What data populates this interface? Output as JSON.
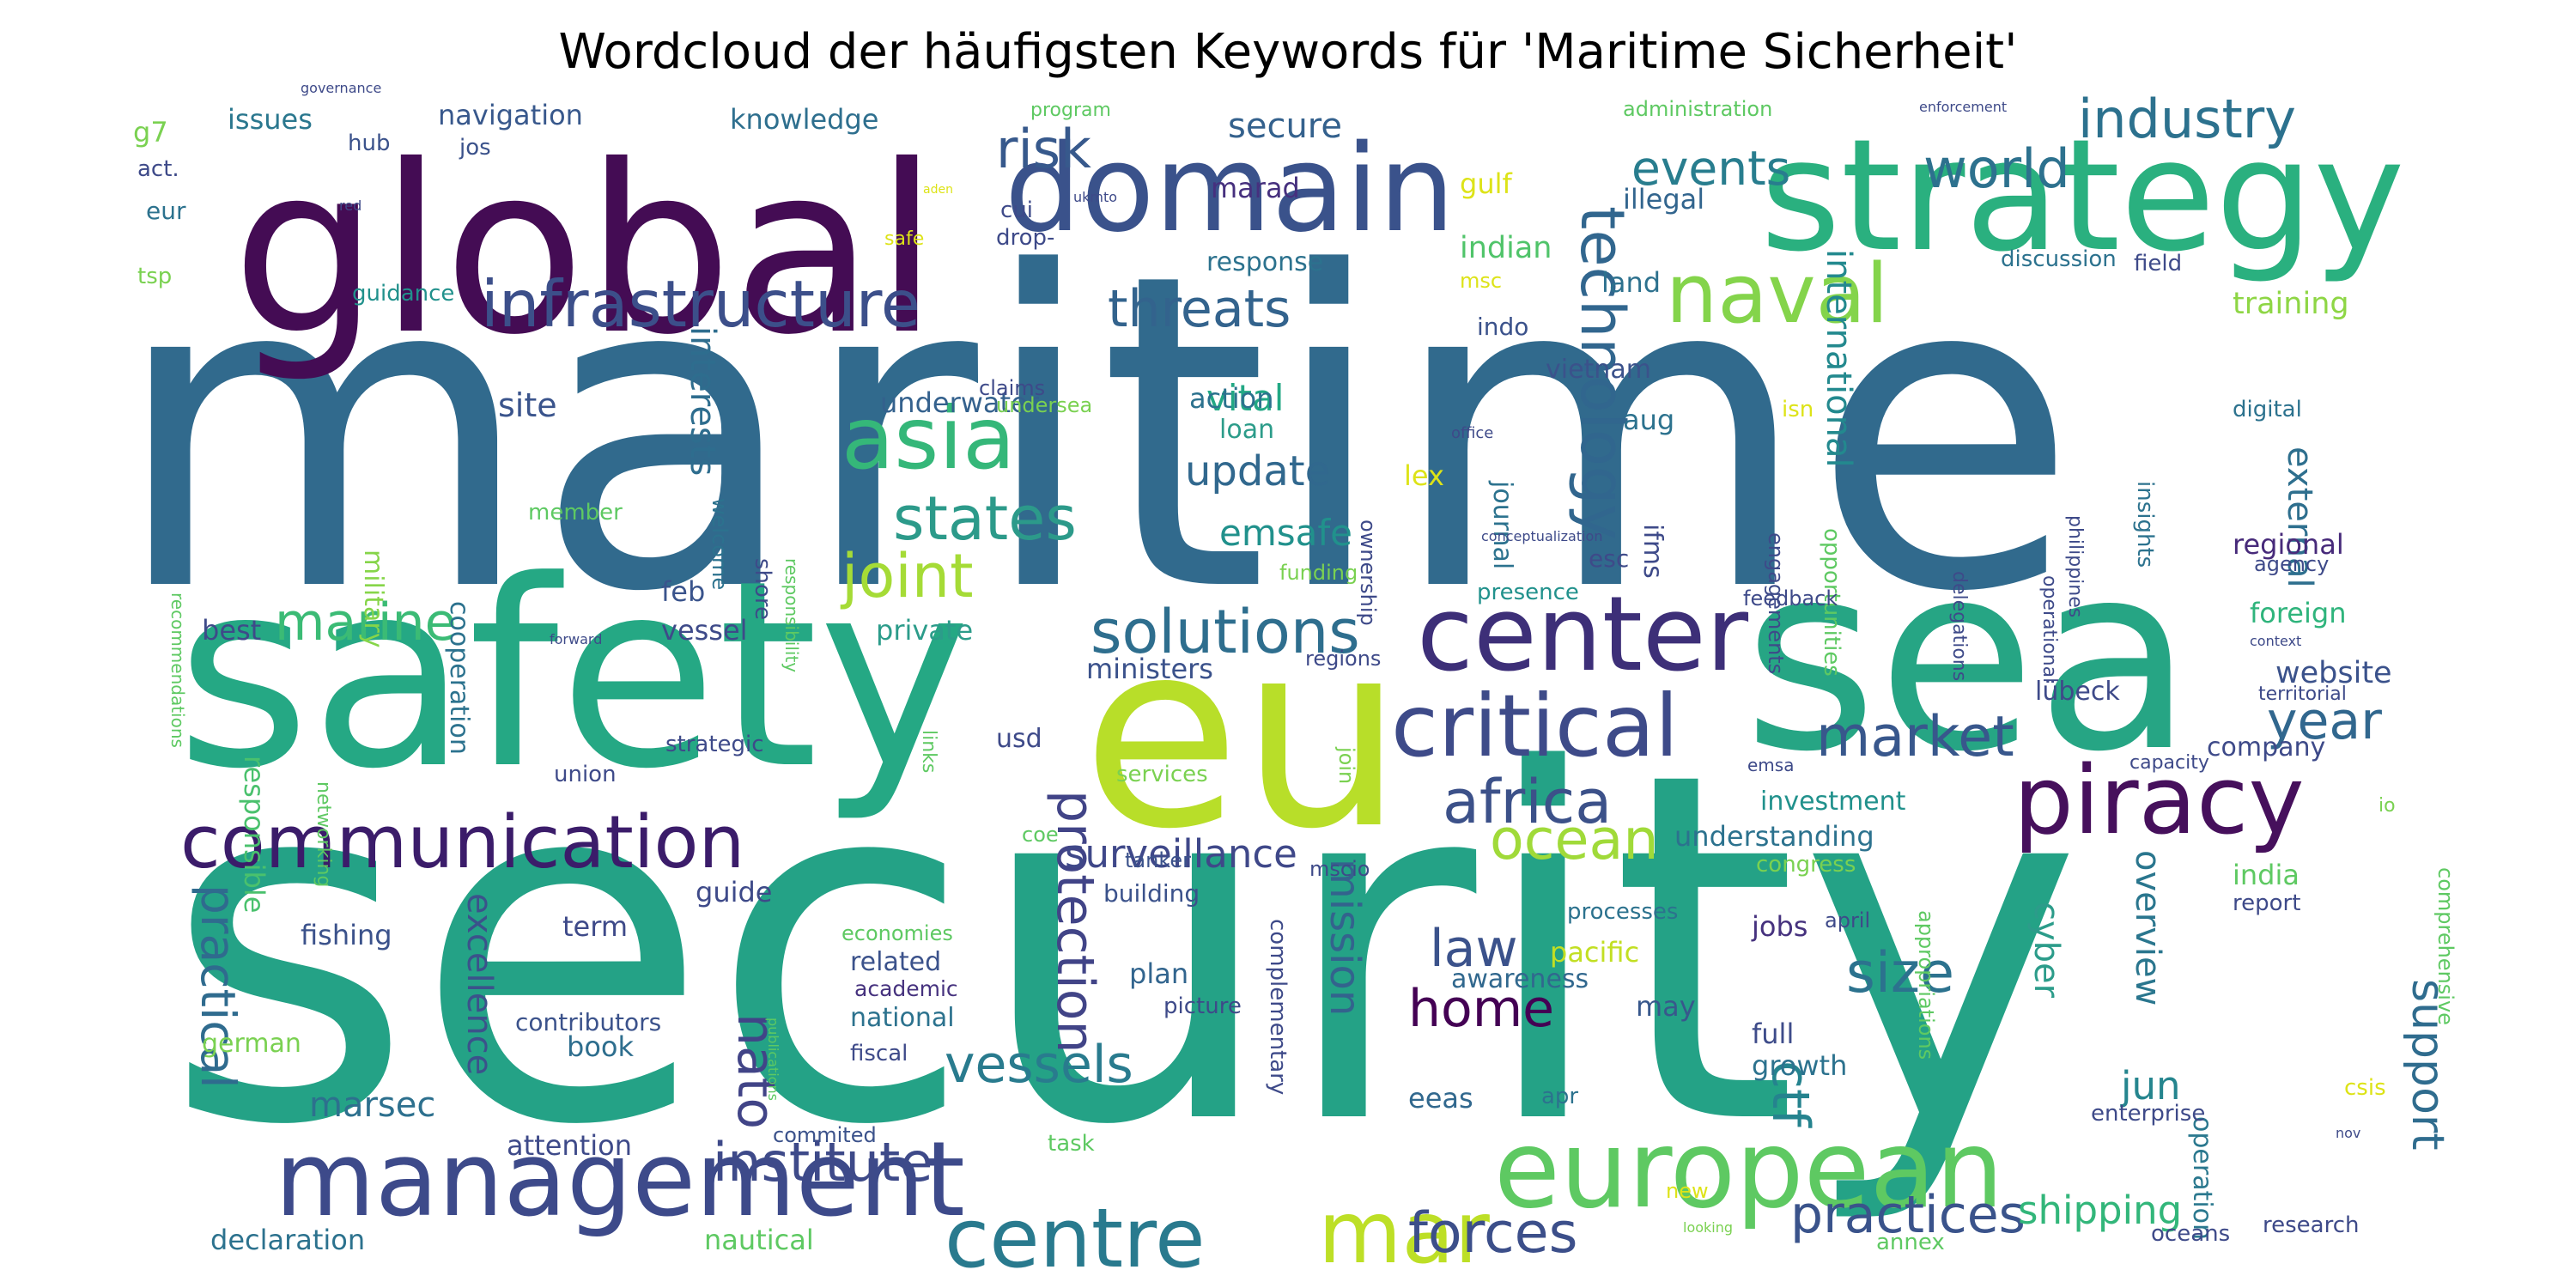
{
  "title": "Wordcloud der häufigsten Keywords für 'Maritime Sicherheit'",
  "palette": "viridis",
  "words": [
    {
      "text": "security",
      "c": "#24a286"
    },
    {
      "text": "maritime",
      "c": "#316a8d"
    },
    {
      "text": "global",
      "c": "#440c54"
    },
    {
      "text": "safety",
      "c": "#25a884"
    },
    {
      "text": "sea",
      "c": "#26a584"
    },
    {
      "text": "strategy",
      "c": "#2ab07f"
    },
    {
      "text": "eu",
      "c": "#b8de29"
    },
    {
      "text": "domain",
      "c": "#3a528b"
    },
    {
      "text": "management",
      "c": "#3d4a8a"
    },
    {
      "text": "european",
      "c": "#5ec962"
    },
    {
      "text": "piracy",
      "c": "#46105c"
    },
    {
      "text": "center",
      "c": "#3d2f78"
    },
    {
      "text": "communication",
      "c": "#3b1c6a"
    },
    {
      "text": "critical",
      "c": "#3e4b89"
    },
    {
      "text": "asia",
      "c": "#35b779"
    },
    {
      "text": "centre",
      "c": "#297a8e"
    },
    {
      "text": "mar",
      "c": "#bddf26"
    },
    {
      "text": "infrastructure",
      "c": "#3c4f8a"
    },
    {
      "text": "naval",
      "c": "#84d44b"
    },
    {
      "text": "technology",
      "c": "#31668e"
    },
    {
      "text": "states",
      "c": "#2c9a8a"
    },
    {
      "text": "africa",
      "c": "#3c5189"
    },
    {
      "text": "institute",
      "c": "#3e4a89"
    },
    {
      "text": "protection",
      "c": "#414487"
    },
    {
      "text": "solutions",
      "c": "#2e6e8e"
    },
    {
      "text": "threats",
      "c": "#33638d"
    },
    {
      "text": "industry",
      "c": "#2c718e"
    },
    {
      "text": "world",
      "c": "#2d718e"
    },
    {
      "text": "risk",
      "c": "#37598c"
    },
    {
      "text": "joint",
      "c": "#a5db36"
    },
    {
      "text": "marine",
      "c": "#3bbb75"
    },
    {
      "text": "events",
      "c": "#287d8e"
    },
    {
      "text": "practical",
      "c": "#2f6b8e"
    },
    {
      "text": "vessels",
      "c": "#297b8e"
    },
    {
      "text": "forces",
      "c": "#3c4f8a"
    },
    {
      "text": "practices",
      "c": "#3a538b"
    },
    {
      "text": "market",
      "c": "#38578c"
    },
    {
      "text": "ocean",
      "c": "#a0da39"
    },
    {
      "text": "support",
      "c": "#2f6c8e"
    },
    {
      "text": "nato",
      "c": "#414487"
    },
    {
      "text": "size",
      "c": "#2c728e"
    },
    {
      "text": "law",
      "c": "#3b528b"
    },
    {
      "text": "surveillance",
      "c": "#3f4889"
    },
    {
      "text": "home",
      "c": "#440154"
    },
    {
      "text": "ctf",
      "c": "#25838e"
    },
    {
      "text": "year",
      "c": "#31678e"
    },
    {
      "text": "shipping",
      "c": "#32b67a"
    },
    {
      "text": "mission",
      "c": "#33638d"
    },
    {
      "text": "update",
      "c": "#31688e"
    },
    {
      "text": "emsafe",
      "c": "#21918c"
    },
    {
      "text": "vital",
      "c": "#22a884"
    },
    {
      "text": "international",
      "c": "#23898e"
    },
    {
      "text": "external",
      "c": "#2e6f8e"
    },
    {
      "text": "cyber",
      "c": "#2c9c8a"
    },
    {
      "text": "overview",
      "c": "#2a768e"
    },
    {
      "text": "interests",
      "c": "#2e6d8e"
    },
    {
      "text": "excellence",
      "c": "#3b528b"
    },
    {
      "text": "marsec",
      "c": "#2d708e"
    },
    {
      "text": "jun",
      "c": "#25858e"
    },
    {
      "text": "secure",
      "c": "#34618d"
    },
    {
      "text": "operation",
      "c": "#2a788e"
    },
    {
      "text": "training",
      "c": "#8ed645"
    },
    {
      "text": "regional",
      "c": "#472a7a"
    },
    {
      "text": "website",
      "c": "#3b528b"
    },
    {
      "text": "foreign",
      "c": "#2fb47c"
    },
    {
      "text": "indian",
      "c": "#50c46a"
    },
    {
      "text": "site",
      "c": "#3a548c"
    },
    {
      "text": "responsible",
      "c": "#4ac16d"
    },
    {
      "text": "navigation",
      "c": "#38588c"
    },
    {
      "text": "knowledge",
      "c": "#2e6f8e"
    },
    {
      "text": "issues",
      "c": "#2a778e"
    },
    {
      "text": "feb",
      "c": "#3a548c"
    },
    {
      "text": "marad",
      "c": "#46307e"
    },
    {
      "text": "underwater",
      "c": "#34618d"
    },
    {
      "text": "land",
      "c": "#2d718e"
    },
    {
      "text": "illegal",
      "c": "#32658e"
    },
    {
      "text": "gulf",
      "c": "#dde318"
    },
    {
      "text": "pacific",
      "c": "#c2df23"
    },
    {
      "text": "full",
      "c": "#3e4c8a"
    },
    {
      "text": "growth",
      "c": "#2c728e"
    },
    {
      "text": "may",
      "c": "#38588c"
    },
    {
      "text": "jobs",
      "c": "#46327e"
    },
    {
      "text": "eeas",
      "c": "#31688e"
    },
    {
      "text": "awareness",
      "c": "#31688e"
    },
    {
      "text": "plan",
      "c": "#32658e"
    },
    {
      "text": "related",
      "c": "#3b528b"
    },
    {
      "text": "national",
      "c": "#2c728e"
    },
    {
      "text": "academic",
      "c": "#46327e"
    },
    {
      "text": "attention",
      "c": "#3e4a89"
    },
    {
      "text": "declaration",
      "c": "#2c728e"
    },
    {
      "text": "nautical",
      "c": "#5ec962"
    },
    {
      "text": "guide",
      "c": "#3e4a89"
    },
    {
      "text": "fishing",
      "c": "#3b528b"
    },
    {
      "text": "term",
      "c": "#3e4a89"
    },
    {
      "text": "book",
      "c": "#2e6e8e"
    },
    {
      "text": "german",
      "c": "#7ad151"
    },
    {
      "text": "contributors",
      "c": "#3b528b"
    },
    {
      "text": "best",
      "c": "#3e4a89"
    },
    {
      "text": "vessel",
      "c": "#3e4a89"
    },
    {
      "text": "private",
      "c": "#2c9c8a"
    },
    {
      "text": "ministers",
      "c": "#3b528b"
    },
    {
      "text": "cooperation",
      "c": "#2c728e"
    },
    {
      "text": "military",
      "c": "#86d549"
    },
    {
      "text": "understanding",
      "c": "#2c728e"
    },
    {
      "text": "investment",
      "c": "#21918c"
    },
    {
      "text": "lübeck",
      "c": "#3e4a89"
    },
    {
      "text": "company",
      "c": "#3e4a89"
    },
    {
      "text": "india",
      "c": "#5ec962"
    },
    {
      "text": "report",
      "c": "#3e4a89"
    },
    {
      "text": "action",
      "c": "#2c728e"
    },
    {
      "text": "loan",
      "c": "#2c9c8a"
    },
    {
      "text": "aug",
      "c": "#2c728e"
    },
    {
      "text": "lex",
      "c": "#dde318"
    },
    {
      "text": "journal",
      "c": "#2c728e"
    },
    {
      "text": "ifms",
      "c": "#3e4a89"
    },
    {
      "text": "esc",
      "c": "#3e4a89"
    },
    {
      "text": "indo",
      "c": "#3b528b"
    },
    {
      "text": "vietnam",
      "c": "#3b528b"
    },
    {
      "text": "response",
      "c": "#2c728e"
    },
    {
      "text": "usd",
      "c": "#3e4a89"
    },
    {
      "text": "services",
      "c": "#7ad151"
    },
    {
      "text": "coe",
      "c": "#5ec962"
    },
    {
      "text": "tanker",
      "c": "#3b528b"
    },
    {
      "text": "building",
      "c": "#3b528b"
    },
    {
      "text": "economies",
      "c": "#5ec962"
    },
    {
      "text": "picture",
      "c": "#3e4a89"
    },
    {
      "text": "task",
      "c": "#5ec962"
    },
    {
      "text": "commited",
      "c": "#3b528b"
    },
    {
      "text": "fiscal",
      "c": "#3e4a89"
    },
    {
      "text": "mscio",
      "c": "#3e4a89"
    },
    {
      "text": "complementary",
      "c": "#3e4a89"
    },
    {
      "text": "processes",
      "c": "#2c728e"
    },
    {
      "text": "congress",
      "c": "#7ad151"
    },
    {
      "text": "april",
      "c": "#3e4a89"
    },
    {
      "text": "enterprise",
      "c": "#3e4a89"
    },
    {
      "text": "apr",
      "c": "#2c728e"
    },
    {
      "text": "oceans",
      "c": "#3e4a89"
    },
    {
      "text": "research",
      "c": "#3e4a89"
    },
    {
      "text": "annex",
      "c": "#5ec962"
    },
    {
      "text": "new",
      "c": "#dde318"
    },
    {
      "text": "csis",
      "c": "#dde318"
    },
    {
      "text": "comprehensive",
      "c": "#5ec962"
    },
    {
      "text": "appropriations",
      "c": "#5ec962"
    },
    {
      "text": "g7",
      "c": "#7ad151"
    },
    {
      "text": "act.",
      "c": "#3e4a89"
    },
    {
      "text": "eur",
      "c": "#2c728e"
    },
    {
      "text": "tsp",
      "c": "#7ad151"
    },
    {
      "text": "hub",
      "c": "#3b528b"
    },
    {
      "text": "jos",
      "c": "#3b528b"
    },
    {
      "text": "guidance",
      "c": "#21918c"
    },
    {
      "text": "program",
      "c": "#5ec962"
    },
    {
      "text": "administration",
      "c": "#5ec962"
    },
    {
      "text": "cui",
      "c": "#3e4a89"
    },
    {
      "text": "drop-",
      "c": "#3e4a89"
    },
    {
      "text": "safe",
      "c": "#dde318"
    },
    {
      "text": "msc",
      "c": "#dde318"
    },
    {
      "text": "claims",
      "c": "#3e4a89"
    },
    {
      "text": "welcome",
      "c": "#2c728e"
    },
    {
      "text": "shore",
      "c": "#3e4a89"
    },
    {
      "text": "undersea",
      "c": "#7ad151"
    },
    {
      "text": "responsibility",
      "c": "#5ec962"
    },
    {
      "text": "member",
      "c": "#5ec962"
    },
    {
      "text": "recommendations",
      "c": "#5ec962"
    },
    {
      "text": "networking",
      "c": "#5ec962"
    },
    {
      "text": "union",
      "c": "#3e4a89"
    },
    {
      "text": "strategic",
      "c": "#3e4a89"
    },
    {
      "text": "links",
      "c": "#5ec962"
    },
    {
      "text": "join",
      "c": "#7ad151"
    },
    {
      "text": "regions",
      "c": "#3e4a89"
    },
    {
      "text": "funding",
      "c": "#7ad151"
    },
    {
      "text": "presence",
      "c": "#21918c"
    },
    {
      "text": "ownership",
      "c": "#3e4a89"
    },
    {
      "text": "office",
      "c": "#3e4a89"
    },
    {
      "text": "conceptualization",
      "c": "#3e4a89"
    },
    {
      "text": "isn",
      "c": "#dde318"
    },
    {
      "text": "engagements",
      "c": "#3e4a89"
    },
    {
      "text": "opportunities",
      "c": "#5ec962"
    },
    {
      "text": "feedback",
      "c": "#3e4a89"
    },
    {
      "text": "delegations",
      "c": "#3e4a89"
    },
    {
      "text": "operational",
      "c": "#3e4a89"
    },
    {
      "text": "philippines",
      "c": "#3e4a89"
    },
    {
      "text": "insights",
      "c": "#2c728e"
    },
    {
      "text": "digital",
      "c": "#2c728e"
    },
    {
      "text": "agency",
      "c": "#3e4a89"
    },
    {
      "text": "discussion",
      "c": "#2c728e"
    },
    {
      "text": "field",
      "c": "#3e4a89"
    },
    {
      "text": "context",
      "c": "#3e4a89"
    },
    {
      "text": "territorial",
      "c": "#3e4a89"
    },
    {
      "text": "capacity",
      "c": "#3e4a89"
    },
    {
      "text": "emsa",
      "c": "#3e4a89"
    },
    {
      "text": "io",
      "c": "#7ad151"
    },
    {
      "text": "nov",
      "c": "#3e4a89"
    },
    {
      "text": "looking",
      "c": "#7ad151"
    },
    {
      "text": "publications",
      "c": "#5ec962"
    },
    {
      "text": "governance",
      "c": "#3e4a89"
    },
    {
      "text": "enforcement",
      "c": "#3e4a89"
    },
    {
      "text": "forward",
      "c": "#3e4a89"
    },
    {
      "text": "red",
      "c": "#3e4a89"
    },
    {
      "text": "aden",
      "c": "#dde318"
    },
    {
      "text": "ukmto",
      "c": "#3e4a89"
    }
  ]
}
